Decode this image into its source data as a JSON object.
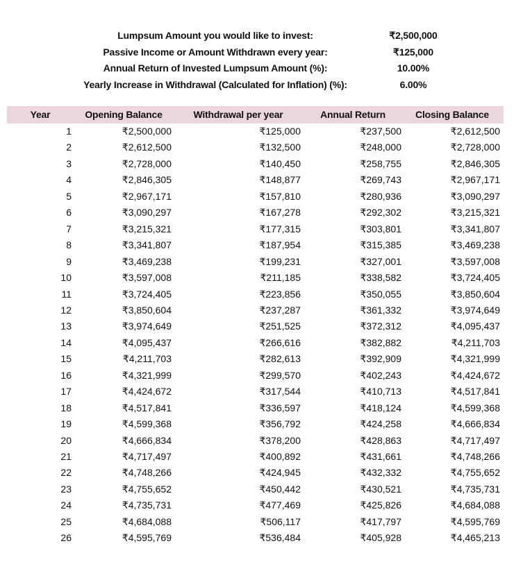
{
  "summary": [
    {
      "label": "Lumpsum Amount you would like to invest:",
      "value": "₹2,500,000"
    },
    {
      "label": "Passive Income or Amount Withdrawn every year:",
      "value": "₹125,000"
    },
    {
      "label": "Annual Return of Invested Lumpsum Amount (%):",
      "value": "10.00%"
    },
    {
      "label": "Yearly Increase in Withdrawal (Calculated for Inflation) (%):",
      "value": "6.00%"
    }
  ],
  "table": {
    "header_color": "#ecd6de",
    "columns": [
      "Year",
      "Opening Balance",
      "Withdrawal per year",
      "Annual Return",
      "Closing Balance"
    ],
    "rows": [
      [
        "1",
        "₹2,500,000",
        "₹125,000",
        "₹237,500",
        "₹2,612,500"
      ],
      [
        "2",
        "₹2,612,500",
        "₹132,500",
        "₹248,000",
        "₹2,728,000"
      ],
      [
        "3",
        "₹2,728,000",
        "₹140,450",
        "₹258,755",
        "₹2,846,305"
      ],
      [
        "4",
        "₹2,846,305",
        "₹148,877",
        "₹269,743",
        "₹2,967,171"
      ],
      [
        "5",
        "₹2,967,171",
        "₹157,810",
        "₹280,936",
        "₹3,090,297"
      ],
      [
        "6",
        "₹3,090,297",
        "₹167,278",
        "₹292,302",
        "₹3,215,321"
      ],
      [
        "7",
        "₹3,215,321",
        "₹177,315",
        "₹303,801",
        "₹3,341,807"
      ],
      [
        "8",
        "₹3,341,807",
        "₹187,954",
        "₹315,385",
        "₹3,469,238"
      ],
      [
        "9",
        "₹3,469,238",
        "₹199,231",
        "₹327,001",
        "₹3,597,008"
      ],
      [
        "10",
        "₹3,597,008",
        "₹211,185",
        "₹338,582",
        "₹3,724,405"
      ],
      [
        "11",
        "₹3,724,405",
        "₹223,856",
        "₹350,055",
        "₹3,850,604"
      ],
      [
        "12",
        "₹3,850,604",
        "₹237,287",
        "₹361,332",
        "₹3,974,649"
      ],
      [
        "13",
        "₹3,974,649",
        "₹251,525",
        "₹372,312",
        "₹4,095,437"
      ],
      [
        "14",
        "₹4,095,437",
        "₹266,616",
        "₹382,882",
        "₹4,211,703"
      ],
      [
        "15",
        "₹4,211,703",
        "₹282,613",
        "₹392,909",
        "₹4,321,999"
      ],
      [
        "16",
        "₹4,321,999",
        "₹299,570",
        "₹402,243",
        "₹4,424,672"
      ],
      [
        "17",
        "₹4,424,672",
        "₹317,544",
        "₹410,713",
        "₹4,517,841"
      ],
      [
        "18",
        "₹4,517,841",
        "₹336,597",
        "₹418,124",
        "₹4,599,368"
      ],
      [
        "19",
        "₹4,599,368",
        "₹356,792",
        "₹424,258",
        "₹4,666,834"
      ],
      [
        "20",
        "₹4,666,834",
        "₹378,200",
        "₹428,863",
        "₹4,717,497"
      ],
      [
        "21",
        "₹4,717,497",
        "₹400,892",
        "₹431,661",
        "₹4,748,266"
      ],
      [
        "22",
        "₹4,748,266",
        "₹424,945",
        "₹432,332",
        "₹4,755,652"
      ],
      [
        "23",
        "₹4,755,652",
        "₹450,442",
        "₹430,521",
        "₹4,735,731"
      ],
      [
        "24",
        "₹4,735,731",
        "₹477,469",
        "₹425,826",
        "₹4,684,088"
      ],
      [
        "25",
        "₹4,684,088",
        "₹506,117",
        "₹417,797",
        "₹4,595,769"
      ],
      [
        "26",
        "₹4,595,769",
        "₹536,484",
        "₹405,928",
        "₹4,465,213"
      ]
    ]
  }
}
